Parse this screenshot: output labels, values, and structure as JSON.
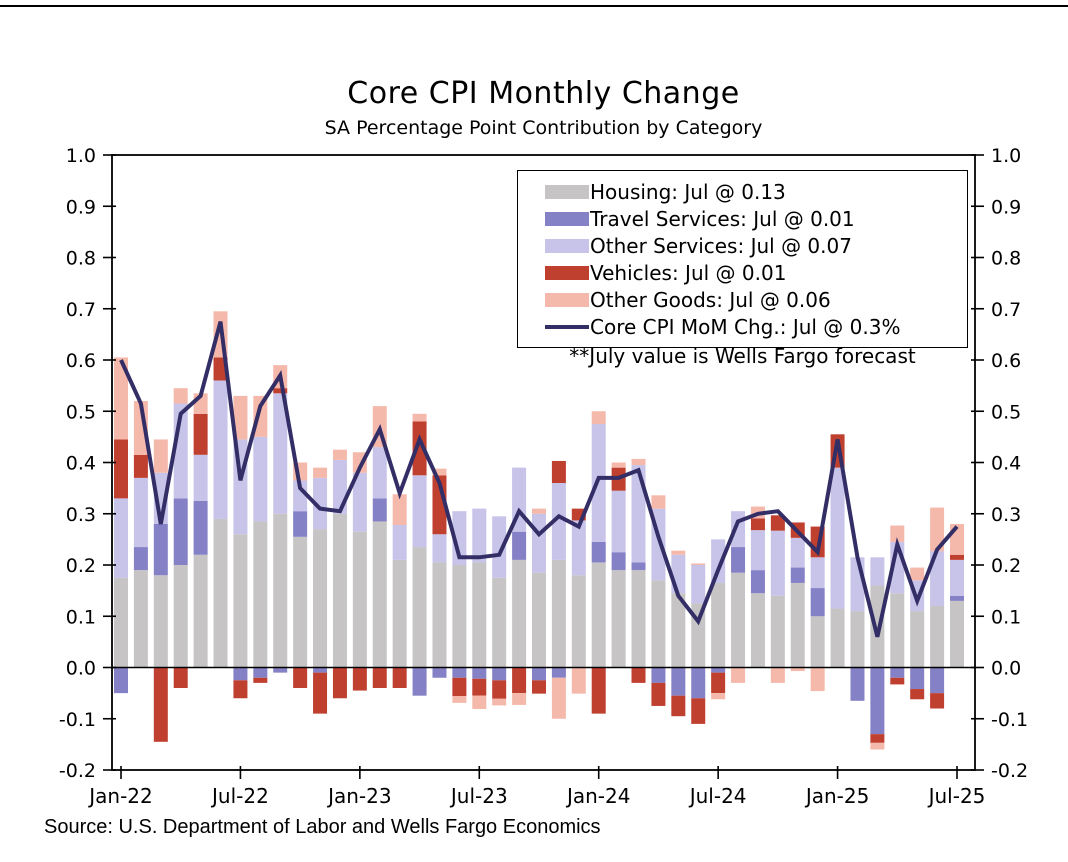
{
  "title": "Core CPI Monthly Change",
  "subtitle": "SA Percentage Point Contribution by Category",
  "source": "Source: U.S. Department of Labor and Wells Fargo Economics",
  "legend": {
    "entries": [
      {
        "label": "Housing: Jul @ 0.13",
        "color": "#c6c4c5",
        "type": "patch"
      },
      {
        "label": "Travel Services: Jul @ 0.01",
        "color": "#8581c6",
        "type": "patch"
      },
      {
        "label": "Other Services: Jul @ 0.07",
        "color": "#c7c3e9",
        "type": "patch"
      },
      {
        "label": "Vehicles: Jul @ 0.01",
        "color": "#c04030",
        "type": "patch"
      },
      {
        "label": "Other Goods: Jul @ 0.06",
        "color": "#f5b9ab",
        "type": "patch"
      },
      {
        "label": "Core CPI MoM Chg.: Jul @ 0.3%",
        "color": "#332e66",
        "type": "line"
      }
    ],
    "note": "**July value is Wells Fargo forecast"
  },
  "chart_data": {
    "type": "bar",
    "title": "Core CPI Monthly Change",
    "subtitle": "SA Percentage Point Contribution by Category",
    "stacked": true,
    "grid": false,
    "legend_position": "upper right",
    "ylim": [
      -0.2,
      1.0
    ],
    "y_ticks": [
      1.0,
      0.9,
      0.8,
      0.7,
      0.6,
      0.5,
      0.4,
      0.3,
      0.2,
      0.1,
      0.0,
      -0.1,
      -0.2
    ],
    "x_tick_labels": [
      "Jan-22",
      "Jul-22",
      "Jan-23",
      "Jul-23",
      "Jan-24",
      "Jul-24",
      "Jan-25",
      "Jul-25"
    ],
    "x_tick_indices": [
      0,
      6,
      12,
      18,
      24,
      30,
      36,
      42
    ],
    "categories": [
      "Jan-22",
      "Feb-22",
      "Mar-22",
      "Apr-22",
      "May-22",
      "Jun-22",
      "Jul-22",
      "Aug-22",
      "Sep-22",
      "Oct-22",
      "Nov-22",
      "Dec-22",
      "Jan-23",
      "Feb-23",
      "Mar-23",
      "Apr-23",
      "May-23",
      "Jun-23",
      "Jul-23",
      "Aug-23",
      "Sep-23",
      "Oct-23",
      "Nov-23",
      "Dec-23",
      "Jan-24",
      "Feb-24",
      "Mar-24",
      "Apr-24",
      "May-24",
      "Jun-24",
      "Jul-24",
      "Aug-24",
      "Sep-24",
      "Oct-24",
      "Nov-24",
      "Dec-24",
      "Jan-25",
      "Feb-25",
      "Mar-25",
      "Apr-25",
      "May-25",
      "Jun-25",
      "Jul-25"
    ],
    "series": [
      {
        "name": "Housing",
        "color": "#c6c4c5",
        "values": [
          0.175,
          0.19,
          0.18,
          0.2,
          0.22,
          0.29,
          0.26,
          0.285,
          0.3,
          0.255,
          0.27,
          0.3,
          0.265,
          0.285,
          0.21,
          0.235,
          0.205,
          0.2,
          0.205,
          0.175,
          0.21,
          0.185,
          0.21,
          0.18,
          0.205,
          0.19,
          0.19,
          0.17,
          0.145,
          0.125,
          0.165,
          0.185,
          0.145,
          0.14,
          0.165,
          0.1,
          0.115,
          0.11,
          0.16,
          0.145,
          0.11,
          0.12,
          0.13
        ]
      },
      {
        "name": "Travel Services",
        "color": "#8581c6",
        "values": [
          -0.05,
          0.045,
          0.1,
          0.13,
          0.105,
          0,
          -0.025,
          -0.02,
          -0.01,
          0.05,
          -0.01,
          0,
          0,
          0.045,
          0,
          -0.055,
          -0.02,
          -0.02,
          -0.022,
          -0.025,
          0.055,
          -0.025,
          -0.02,
          0,
          0.04,
          0.035,
          0.015,
          -0.03,
          -0.055,
          -0.06,
          -0.01,
          0.05,
          0.045,
          0,
          0.03,
          0.055,
          0,
          -0.065,
          -0.13,
          -0.02,
          -0.042,
          -0.05,
          0.01
        ]
      },
      {
        "name": "Other Services",
        "color": "#c7c3e9",
        "values": [
          0.155,
          0.135,
          0.1,
          0.185,
          0.09,
          0.27,
          0.185,
          0.165,
          0.235,
          0.06,
          0.1,
          0.105,
          0.115,
          0.1,
          0.068,
          0.14,
          0.055,
          0.105,
          0.105,
          0.12,
          0.125,
          0.115,
          0.15,
          0.107,
          0.23,
          0.12,
          0.19,
          0.14,
          0.075,
          0.075,
          0.085,
          0.07,
          0.078,
          0.127,
          0.058,
          0.06,
          0.275,
          0.105,
          0.055,
          0.1,
          0.06,
          0.107,
          0.07
        ]
      },
      {
        "name": "Vehicles",
        "color": "#c04030",
        "values": [
          0.115,
          0.045,
          -0.145,
          -0.04,
          0.08,
          0.045,
          -0.035,
          -0.01,
          0.01,
          -0.04,
          -0.08,
          -0.06,
          -0.045,
          -0.04,
          -0.04,
          0.105,
          0.115,
          -0.036,
          -0.033,
          -0.036,
          -0.05,
          -0.026,
          0.043,
          0.023,
          -0.09,
          0.045,
          -0.03,
          -0.045,
          -0.04,
          -0.05,
          -0.04,
          0,
          0.023,
          0.03,
          0.03,
          0.06,
          0.065,
          0,
          -0.017,
          -0.013,
          -0.02,
          -0.03,
          0.01
        ]
      },
      {
        "name": "Other Goods",
        "color": "#f5b9ab",
        "values": [
          0.16,
          0.105,
          0.065,
          0.03,
          0.04,
          0.09,
          0.085,
          0.08,
          0.045,
          0.035,
          0.02,
          0.02,
          0.04,
          0.08,
          0.06,
          0.015,
          0.013,
          -0.013,
          -0.026,
          -0.013,
          -0.023,
          0.01,
          -0.08,
          -0.051,
          0.025,
          0.01,
          0.012,
          0.026,
          0.008,
          0.003,
          -0.012,
          -0.03,
          0.023,
          -0.03,
          -0.007,
          -0.046,
          0,
          0,
          -0.013,
          0.032,
          0.025,
          0.085,
          0.06
        ]
      }
    ],
    "line_series": {
      "name": "Core CPI MoM Chg.",
      "color": "#332e66",
      "values": [
        0.6,
        0.515,
        0.28,
        0.495,
        0.53,
        0.675,
        0.365,
        0.51,
        0.57,
        0.35,
        0.31,
        0.305,
        0.39,
        0.465,
        0.34,
        0.445,
        0.36,
        0.215,
        0.215,
        0.22,
        0.305,
        0.26,
        0.295,
        0.275,
        0.37,
        0.37,
        0.385,
        0.255,
        0.14,
        0.09,
        0.19,
        0.285,
        0.3,
        0.305,
        0.265,
        0.225,
        0.445,
        0.215,
        0.06,
        0.24,
        0.13,
        0.23,
        0.275
      ]
    },
    "annotation": "**July value is Wells Fargo forecast",
    "source": "Source: U.S. Department of Labor and Wells Fargo Economics"
  }
}
